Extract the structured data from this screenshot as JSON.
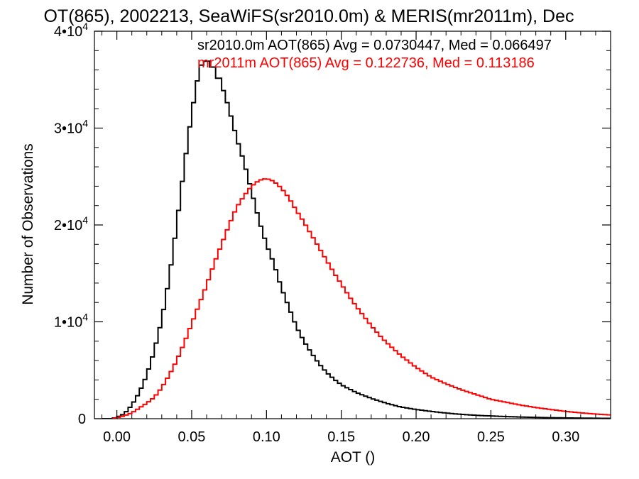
{
  "chart_data": {
    "type": "line",
    "step": true,
    "title": "OT(865), 2002213, SeaWiFS(sr2010.0m) & MERIS(mr2011m), Dec",
    "xlabel": "AOT ()",
    "ylabel": "Number of Observations",
    "xlim": [
      -0.015,
      0.33
    ],
    "ylim": [
      0,
      40000
    ],
    "x_ticks": [
      {
        "value": 0.0,
        "label": "0.00"
      },
      {
        "value": 0.05,
        "label": "0.05"
      },
      {
        "value": 0.1,
        "label": "0.10"
      },
      {
        "value": 0.15,
        "label": "0.15"
      },
      {
        "value": 0.2,
        "label": "0.20"
      },
      {
        "value": 0.25,
        "label": "0.25"
      },
      {
        "value": 0.3,
        "label": "0.30"
      }
    ],
    "y_ticks": [
      {
        "value": 0,
        "base": "0",
        "exp": ""
      },
      {
        "value": 10000,
        "base": "1•10",
        "exp": "4"
      },
      {
        "value": 20000,
        "base": "2•10",
        "exp": "4"
      },
      {
        "value": 30000,
        "base": "3•10",
        "exp": "4"
      },
      {
        "value": 40000,
        "base": "4•10",
        "exp": "4"
      }
    ],
    "grid": false,
    "legend_position": "top-right",
    "series": [
      {
        "name": "sr2010.0m AOT(865) Avg = 0.0730447, Med = 0.066497",
        "color": "#000000",
        "points": [
          [
            -0.01,
            0
          ],
          [
            -0.003,
            0
          ],
          [
            0.0,
            150
          ],
          [
            0.005,
            500
          ],
          [
            0.01,
            1400
          ],
          [
            0.015,
            2700
          ],
          [
            0.02,
            4500
          ],
          [
            0.025,
            7000
          ],
          [
            0.03,
            10200
          ],
          [
            0.035,
            14500
          ],
          [
            0.04,
            20000
          ],
          [
            0.045,
            26000
          ],
          [
            0.05,
            31500
          ],
          [
            0.055,
            36000
          ],
          [
            0.058,
            37000
          ],
          [
            0.062,
            36800
          ],
          [
            0.066,
            35800
          ],
          [
            0.07,
            34500
          ],
          [
            0.075,
            32000
          ],
          [
            0.08,
            29000
          ],
          [
            0.085,
            26500
          ],
          [
            0.09,
            23500
          ],
          [
            0.095,
            20500
          ],
          [
            0.1,
            18000
          ],
          [
            0.105,
            16000
          ],
          [
            0.11,
            13500
          ],
          [
            0.115,
            11500
          ],
          [
            0.12,
            9500
          ],
          [
            0.125,
            8000
          ],
          [
            0.13,
            6800
          ],
          [
            0.135,
            5700
          ],
          [
            0.14,
            4800
          ],
          [
            0.145,
            4100
          ],
          [
            0.15,
            3500
          ],
          [
            0.16,
            2700
          ],
          [
            0.17,
            2100
          ],
          [
            0.18,
            1600
          ],
          [
            0.19,
            1200
          ],
          [
            0.2,
            950
          ],
          [
            0.21,
            750
          ],
          [
            0.22,
            580
          ],
          [
            0.23,
            450
          ],
          [
            0.24,
            350
          ],
          [
            0.25,
            280
          ],
          [
            0.26,
            220
          ],
          [
            0.27,
            170
          ],
          [
            0.28,
            130
          ],
          [
            0.29,
            100
          ],
          [
            0.3,
            80
          ],
          [
            0.31,
            60
          ],
          [
            0.32,
            45
          ],
          [
            0.33,
            35
          ]
        ]
      },
      {
        "name": "mr2011m AOT(865) Avg = 0.122736, Med = 0.113186",
        "color": "#ff0000",
        "points": [
          [
            -0.003,
            0
          ],
          [
            0.005,
            300
          ],
          [
            0.01,
            600
          ],
          [
            0.015,
            1100
          ],
          [
            0.02,
            1600
          ],
          [
            0.025,
            2200
          ],
          [
            0.03,
            3200
          ],
          [
            0.035,
            4500
          ],
          [
            0.04,
            6000
          ],
          [
            0.045,
            7800
          ],
          [
            0.05,
            9800
          ],
          [
            0.055,
            11800
          ],
          [
            0.06,
            13800
          ],
          [
            0.065,
            16000
          ],
          [
            0.07,
            18000
          ],
          [
            0.075,
            20000
          ],
          [
            0.08,
            21800
          ],
          [
            0.085,
            23000
          ],
          [
            0.09,
            24000
          ],
          [
            0.095,
            24600
          ],
          [
            0.1,
            24800
          ],
          [
            0.105,
            24500
          ],
          [
            0.11,
            23800
          ],
          [
            0.115,
            22800
          ],
          [
            0.12,
            21500
          ],
          [
            0.125,
            20300
          ],
          [
            0.13,
            19000
          ],
          [
            0.135,
            17700
          ],
          [
            0.14,
            16400
          ],
          [
            0.145,
            15100
          ],
          [
            0.15,
            13900
          ],
          [
            0.155,
            12700
          ],
          [
            0.16,
            11600
          ],
          [
            0.165,
            10600
          ],
          [
            0.17,
            9600
          ],
          [
            0.175,
            8700
          ],
          [
            0.18,
            7900
          ],
          [
            0.185,
            7200
          ],
          [
            0.19,
            6500
          ],
          [
            0.195,
            5900
          ],
          [
            0.2,
            5300
          ],
          [
            0.21,
            4300
          ],
          [
            0.22,
            3600
          ],
          [
            0.23,
            3000
          ],
          [
            0.24,
            2500
          ],
          [
            0.25,
            2000
          ],
          [
            0.26,
            1700
          ],
          [
            0.27,
            1400
          ],
          [
            0.28,
            1150
          ],
          [
            0.29,
            950
          ],
          [
            0.3,
            750
          ],
          [
            0.31,
            600
          ],
          [
            0.32,
            480
          ],
          [
            0.33,
            380
          ]
        ]
      }
    ]
  }
}
